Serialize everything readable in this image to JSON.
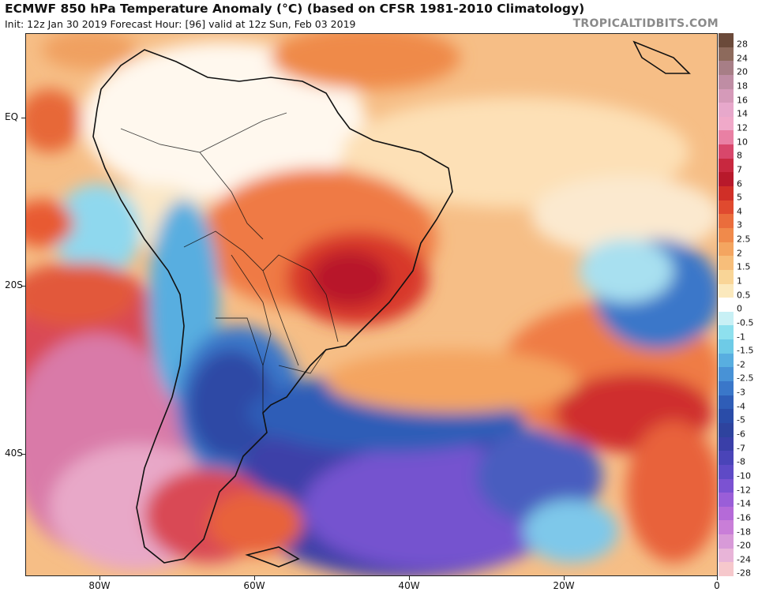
{
  "header": {
    "title": "ECMWF 850 hPa Temperature Anomaly (°C) (based on CFSR 1981-2010 Climatology)",
    "subtitle": "Init: 12z Jan 30 2019   Forecast Hour: [96]   valid at 12z Sun, Feb 03 2019",
    "brand": "TROPICALTIDBITS.COM"
  },
  "axes": {
    "y_ticks": [
      "EQ",
      "20S",
      "40S"
    ],
    "x_ticks": [
      "80W",
      "60W",
      "40W",
      "20W",
      "0"
    ]
  },
  "colorbar": {
    "levels": [
      {
        "label": "28",
        "color": "#6b4a3a"
      },
      {
        "label": "24",
        "color": "#8d6a5c"
      },
      {
        "label": "20",
        "color": "#a77e86"
      },
      {
        "label": "18",
        "color": "#bf8da4"
      },
      {
        "label": "16",
        "color": "#d59ab9"
      },
      {
        "label": "14",
        "color": "#e7a8cb"
      },
      {
        "label": "12",
        "color": "#f0a9c9"
      },
      {
        "label": "10",
        "color": "#e980a4"
      },
      {
        "label": "8",
        "color": "#d8476b"
      },
      {
        "label": "7",
        "color": "#c8283f"
      },
      {
        "label": "6",
        "color": "#b8192b"
      },
      {
        "label": "5",
        "color": "#d02f27"
      },
      {
        "label": "4",
        "color": "#e04a2f"
      },
      {
        "label": "3",
        "color": "#ea6d3c"
      },
      {
        "label": "2.5",
        "color": "#f08a4b"
      },
      {
        "label": "2",
        "color": "#f4a560"
      },
      {
        "label": "1.5",
        "color": "#f7be7a"
      },
      {
        "label": "1",
        "color": "#f9d597"
      },
      {
        "label": "0.5",
        "color": "#fbe9bd"
      },
      {
        "label": "0",
        "color": "#ffffff"
      },
      {
        "label": "-0.5",
        "color": "#c8f0f5"
      },
      {
        "label": "-1",
        "color": "#8ee0ee"
      },
      {
        "label": "-1.5",
        "color": "#6ecbe7"
      },
      {
        "label": "-2",
        "color": "#58aee0"
      },
      {
        "label": "-2.5",
        "color": "#4892d6"
      },
      {
        "label": "-3",
        "color": "#3a77c9"
      },
      {
        "label": "-4",
        "color": "#2f5db7"
      },
      {
        "label": "-5",
        "color": "#2a4ca8"
      },
      {
        "label": "-6",
        "color": "#2e439e"
      },
      {
        "label": "-7",
        "color": "#3a3fa8"
      },
      {
        "label": "-8",
        "color": "#4a44b8"
      },
      {
        "label": "-10",
        "color": "#5e4ac6"
      },
      {
        "label": "-12",
        "color": "#7b52d2"
      },
      {
        "label": "-14",
        "color": "#9a5ed8"
      },
      {
        "label": "-16",
        "color": "#b56ad8"
      },
      {
        "label": "-18",
        "color": "#c97ed8"
      },
      {
        "label": "-20",
        "color": "#d89ad8"
      },
      {
        "label": "-24",
        "color": "#e8b4d8"
      },
      {
        "label": "-28",
        "color": "#f6c8cc"
      }
    ]
  }
}
